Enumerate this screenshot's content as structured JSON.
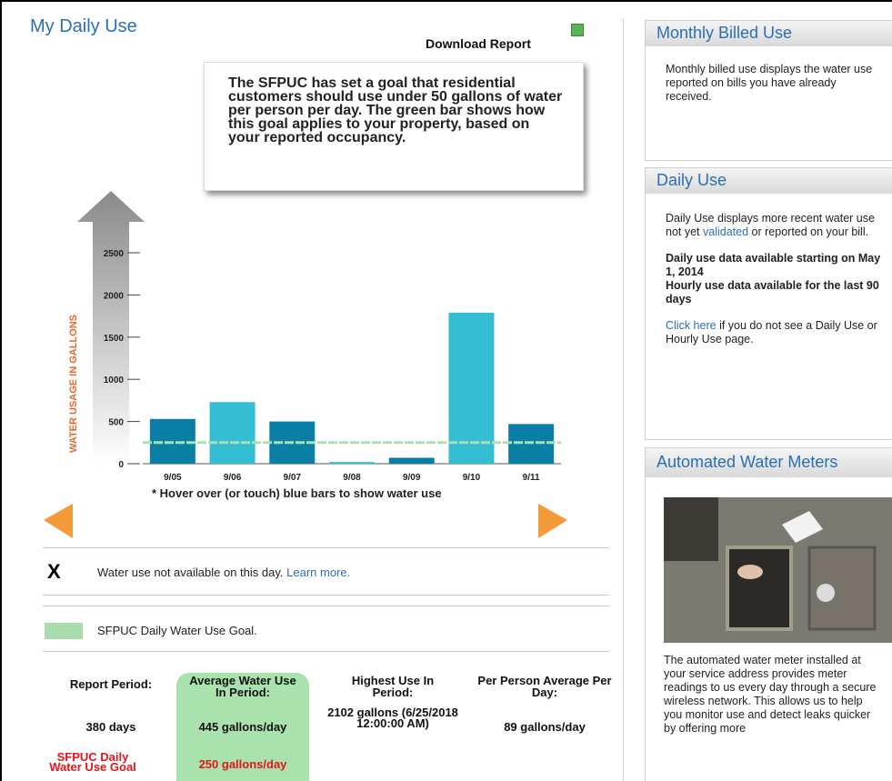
{
  "header": {
    "title": "My Daily Use",
    "download": "Download Report"
  },
  "goal_note": "The SFPUC has set a goal that residential customers should use under 50 gallons of water per person per day. The green bar shows how this goal applies to your property, based on your reported occupancy.",
  "chart_data": {
    "type": "bar",
    "y_label": "WATER USAGE IN GALLONS",
    "categories": [
      "9/05",
      "9/06",
      "9/07",
      "9/08",
      "9/09",
      "9/10",
      "9/11"
    ],
    "values": [
      530,
      730,
      500,
      20,
      70,
      1790,
      470
    ],
    "colors": [
      "#0b7ea6",
      "#35bdd4",
      "#0b7ea6",
      "#35bdd4",
      "#0b7ea6",
      "#35bdd4",
      "#0b7ea6"
    ],
    "ylim": [
      0,
      2500
    ],
    "yticks": [
      0,
      500,
      1000,
      1500,
      2000,
      2500
    ],
    "goal": 250,
    "goal_color": "#a9e2ad",
    "footnote": "* Hover over (or touch) blue bars to show water use"
  },
  "legend": {
    "unavailable_mark": "X",
    "unavailable_text": "Water use not available on this day.",
    "learn_more": "Learn more.",
    "goal_text": "SFPUC Daily Water Use Goal."
  },
  "summary": {
    "headers": [
      "Report Period:",
      "Average Water Use In Period:",
      "Highest Use In Period:",
      "Per Person Average Per Day:"
    ],
    "values": [
      "380 days",
      "445 gallons/day",
      "2102 gallons (6/25/2018 12:00:00 AM)",
      "89 gallons/day"
    ],
    "goal_label": "SFPUC Daily Water Use Goal",
    "goal_value": "250 gallons/day"
  },
  "sidebar": {
    "monthly": {
      "title": "Monthly Billed Use",
      "text": "Monthly billed use displays the water use reported on bills you have already received."
    },
    "daily": {
      "title": "Daily Use",
      "text_before": "Daily Use displays more recent water use not yet",
      "link": "validated",
      "text_after": "or reported on your bill.",
      "bold_1": "Daily use data available starting on May 1, 2014",
      "bold_2": "Hourly use data available for the last 90 days",
      "click_link": "Click here",
      "click_text": "if you do not see a Daily Use or Hourly Use page."
    },
    "meters": {
      "title": "Automated Water Meters",
      "text": "The automated water meter installed at your service address provides meter readings to us every day through a secure wireless network. This allows us to help you monitor use and detect leaks quicker by offering more"
    }
  }
}
